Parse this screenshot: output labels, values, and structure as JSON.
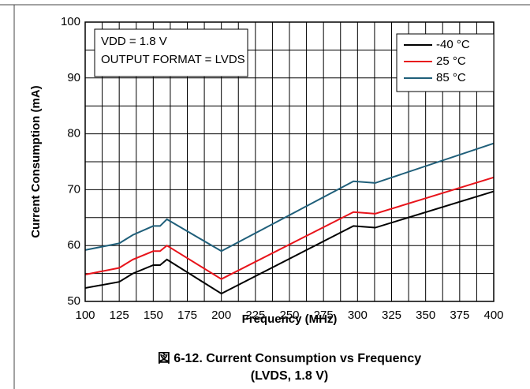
{
  "chart_data": {
    "type": "line",
    "caption": [
      "図 6-12. Current Consumption vs Frequency",
      "(LVDS, 1.8 V)"
    ],
    "xlabel": "Frequency (MHz)",
    "ylabel": "Current Consumption (mA)",
    "annotations": [
      "VDD = 1.8 V",
      "OUTPUT FORMAT = LVDS"
    ],
    "x": [
      100,
      125,
      135,
      150,
      155,
      160,
      200,
      297,
      313,
      400
    ],
    "series": [
      {
        "name": "-40 °C",
        "color": "#000000",
        "values": [
          52.4,
          53.5,
          55.0,
          56.5,
          56.5,
          57.5,
          51.4,
          63.5,
          63.2,
          69.7
        ]
      },
      {
        "name": "25 °C",
        "color": "#e8141b",
        "values": [
          54.8,
          56.0,
          57.5,
          59.0,
          59.0,
          60.0,
          54.0,
          66.0,
          65.7,
          72.2
        ]
      },
      {
        "name": "85 °C",
        "color": "#1f5f7a",
        "values": [
          59.2,
          60.4,
          61.9,
          63.5,
          63.5,
          64.7,
          59.0,
          71.5,
          71.2,
          78.3
        ]
      }
    ],
    "xlim": [
      100,
      400
    ],
    "xticks": [
      100,
      125,
      150,
      175,
      200,
      225,
      250,
      275,
      300,
      325,
      350,
      375,
      400
    ],
    "ylim": [
      50,
      100
    ],
    "yticks": [
      50,
      60,
      70,
      80,
      90,
      100
    ],
    "grid": true,
    "legend": "upper right"
  }
}
